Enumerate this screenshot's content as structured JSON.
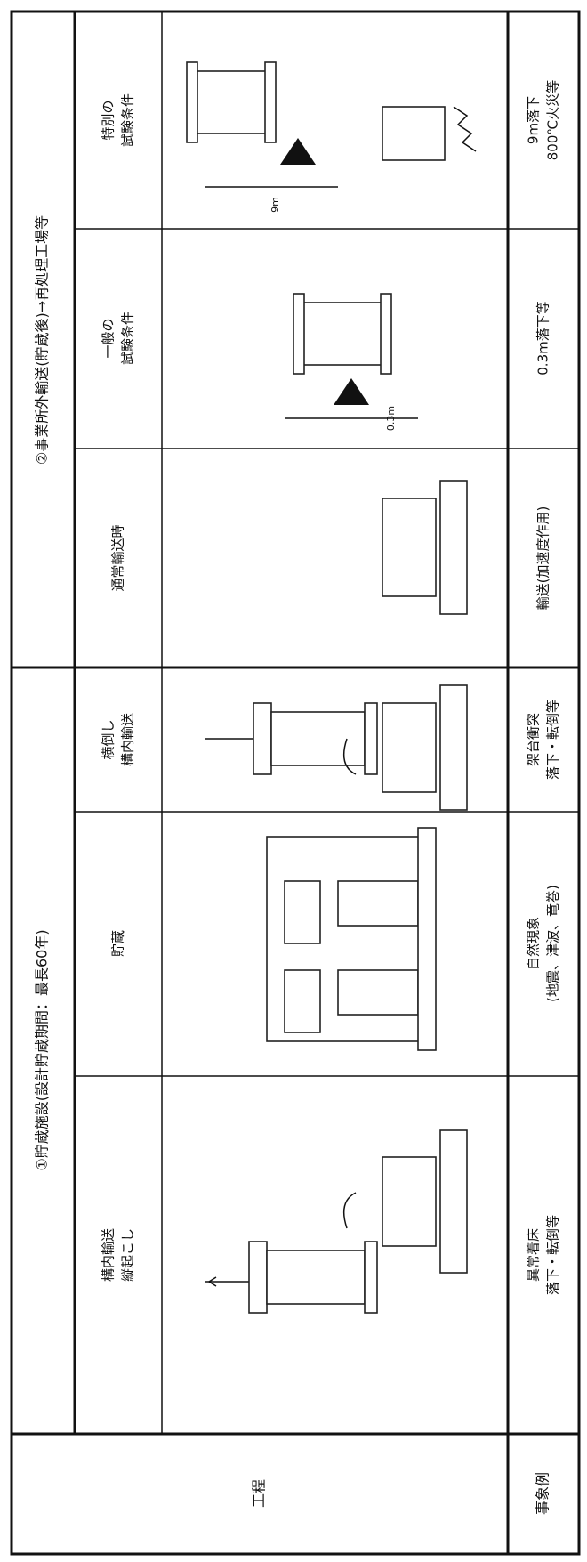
{
  "table": {
    "process_label": "工程",
    "event_label": "事象例",
    "groups": [
      {
        "title": "①貯蔵施設(設計貯蔵期間：最長60年)",
        "columns": [
          {
            "name": [
              "構内輸送",
              "縦起こし"
            ],
            "event": [
              "異常着床",
              "落下・転倒等"
            ]
          },
          {
            "name": [
              "貯蔵"
            ],
            "event": [
              "自然現象",
              "(地震、津波、竜巻)"
            ]
          },
          {
            "name": [
              "横倒し",
              "構内輸送"
            ],
            "event": [
              "架台衝突",
              "落下・転倒等"
            ]
          }
        ]
      },
      {
        "title": "②事業所外輸送(貯蔵後)→再処理工場等",
        "columns": [
          {
            "name": [
              "通常輸送時"
            ],
            "event": [
              "輸送(加速度作用)"
            ]
          },
          {
            "name": [
              "一般の",
              "試験条件"
            ],
            "event": [
              "0.3m落下等"
            ],
            "drop": "0.3m"
          },
          {
            "name": [
              "特別の",
              "試験条件"
            ],
            "event": [
              "9m落下",
              "800℃火災等"
            ],
            "drop": "9m"
          }
        ]
      }
    ]
  }
}
